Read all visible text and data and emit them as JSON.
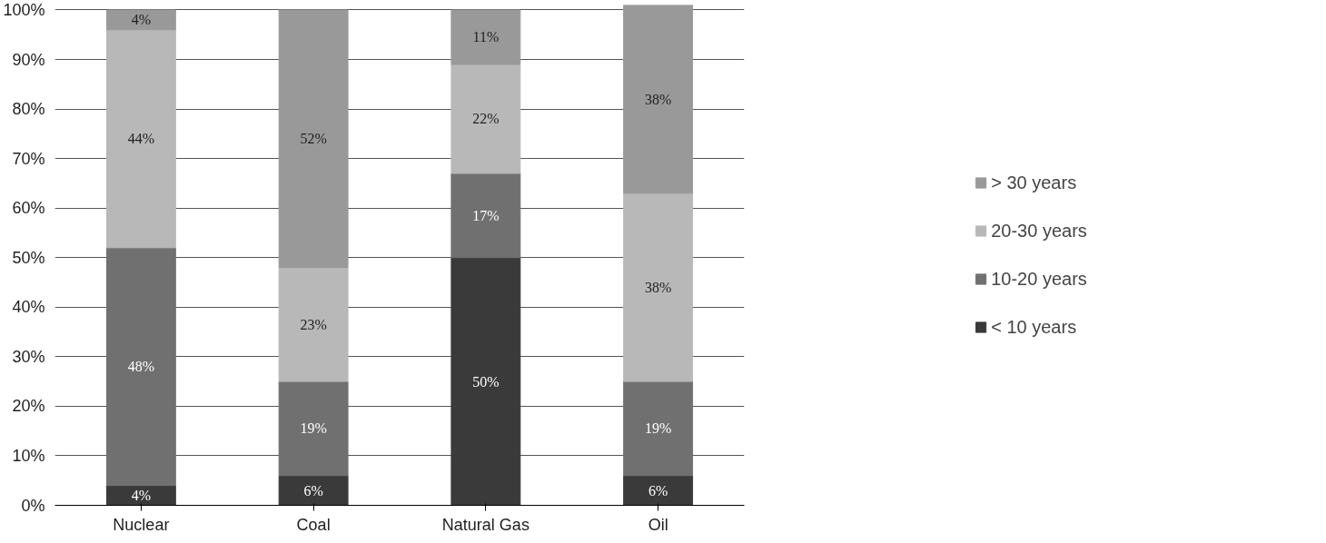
{
  "chart_data": {
    "type": "bar",
    "stacked": true,
    "categories": [
      "Nuclear",
      "Coal",
      "Natural Gas",
      "Oil"
    ],
    "series": [
      {
        "name": "< 10 years",
        "color": "#3a3a3a",
        "values": [
          4,
          6,
          50,
          6
        ],
        "value_labels": [
          "4%",
          "6%",
          "50%",
          "6%"
        ]
      },
      {
        "name": "10-20 years",
        "color": "#707070",
        "values": [
          48,
          19,
          17,
          19
        ],
        "value_labels": [
          "48%",
          "19%",
          "17%",
          "19%"
        ]
      },
      {
        "name": "20-30 years",
        "color": "#b8b8b8",
        "values": [
          44,
          23,
          22,
          38
        ],
        "value_labels": [
          "44%",
          "23%",
          "22%",
          "38%"
        ]
      },
      {
        "name": "> 30 years",
        "color": "#999999",
        "values": [
          4,
          52,
          11,
          38
        ],
        "value_labels": [
          "4%",
          "52%",
          "11%",
          "38%"
        ]
      }
    ],
    "ylim": [
      0,
      101
    ],
    "yticks": [
      {
        "value": 0,
        "label": "0%"
      },
      {
        "value": 10,
        "label": "10%"
      },
      {
        "value": 20,
        "label": "20%"
      },
      {
        "value": 30,
        "label": "30%"
      },
      {
        "value": 40,
        "label": "40%"
      },
      {
        "value": 50,
        "label": "50%"
      },
      {
        "value": 60,
        "label": "60%"
      },
      {
        "value": 70,
        "label": "70%"
      },
      {
        "value": 80,
        "label": "80%"
      },
      {
        "value": 90,
        "label": "90%"
      },
      {
        "value": 100,
        "label": "100%"
      }
    ],
    "grid": "y",
    "legend": "right"
  }
}
